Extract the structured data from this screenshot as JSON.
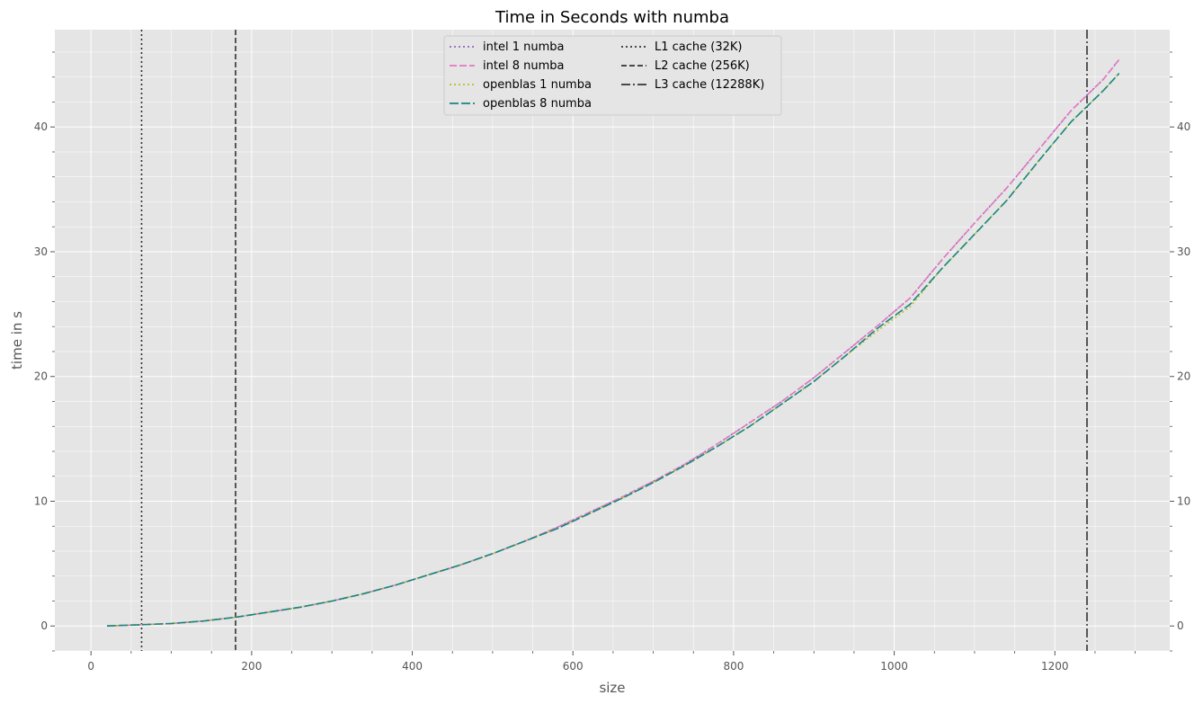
{
  "chart_data": {
    "type": "line",
    "title": "Time in Seconds with numba",
    "xlabel": "size",
    "ylabel": "time in s",
    "xlim": [
      -45,
      1343
    ],
    "ylim": [
      -2.0,
      47.8
    ],
    "x_ticks": [
      0,
      200,
      400,
      600,
      800,
      1000,
      1200
    ],
    "y_ticks": [
      0,
      10,
      20,
      30,
      40
    ],
    "grid": true,
    "legend_position": "top-center",
    "background": "#e5e5e5",
    "x": [
      20,
      60,
      100,
      140,
      180,
      220,
      260,
      300,
      340,
      380,
      420,
      460,
      500,
      540,
      580,
      620,
      660,
      700,
      740,
      780,
      820,
      860,
      900,
      940,
      980,
      1020,
      1060,
      1100,
      1140,
      1180,
      1220,
      1260,
      1280
    ],
    "series": [
      {
        "name": "intel 1 numba",
        "color": "#9467bd",
        "dash": "2,3",
        "values": [
          0.0,
          0.1,
          0.2,
          0.4,
          0.7,
          1.1,
          1.5,
          2.0,
          2.6,
          3.3,
          4.1,
          4.9,
          5.8,
          6.8,
          7.9,
          9.1,
          10.3,
          11.6,
          13.0,
          14.6,
          16.3,
          18.0,
          19.9,
          22.0,
          24.1,
          26.3,
          29.4,
          32.3,
          35.1,
          38.2,
          41.3,
          43.8,
          45.4
        ]
      },
      {
        "name": "intel 8 numba",
        "color": "#e377c2",
        "dash": "8,3",
        "values": [
          0.0,
          0.1,
          0.2,
          0.4,
          0.7,
          1.1,
          1.5,
          2.0,
          2.6,
          3.3,
          4.1,
          4.9,
          5.8,
          6.8,
          7.9,
          9.1,
          10.3,
          11.6,
          13.0,
          14.6,
          16.3,
          18.0,
          19.9,
          22.0,
          24.1,
          26.3,
          29.4,
          32.3,
          35.1,
          38.2,
          41.3,
          43.8,
          45.4
        ]
      },
      {
        "name": "openblas 1 numba",
        "color": "#bcbd22",
        "dash": "2,3",
        "values": [
          0.0,
          0.1,
          0.2,
          0.4,
          0.7,
          1.1,
          1.5,
          2.0,
          2.6,
          3.3,
          4.1,
          4.9,
          5.8,
          6.8,
          7.8,
          9.0,
          10.2,
          11.5,
          12.9,
          14.4,
          16.0,
          17.8,
          19.6,
          21.7,
          23.7,
          25.6,
          28.7,
          31.4,
          34.1,
          37.3,
          40.4,
          42.9,
          44.3
        ]
      },
      {
        "name": "openblas 8 numba",
        "color": "#17877f",
        "dash": "10,3",
        "values": [
          0.0,
          0.1,
          0.2,
          0.4,
          0.7,
          1.1,
          1.5,
          2.0,
          2.6,
          3.3,
          4.1,
          4.9,
          5.8,
          6.8,
          7.8,
          9.0,
          10.2,
          11.5,
          12.9,
          14.4,
          16.0,
          17.8,
          19.6,
          21.7,
          23.9,
          25.8,
          28.7,
          31.4,
          34.1,
          37.3,
          40.4,
          42.9,
          44.3
        ]
      }
    ],
    "vlines": [
      {
        "name": "L1 cache (32K)",
        "x": 63,
        "dash": "2,3",
        "color": "#333333"
      },
      {
        "name": "L2 cache (256K)",
        "x": 180,
        "dash": "6,3",
        "color": "#333333"
      },
      {
        "name": "L3 cache (12288K)",
        "x": 1240,
        "dash": "10,3,2,3",
        "color": "#333333"
      }
    ]
  }
}
